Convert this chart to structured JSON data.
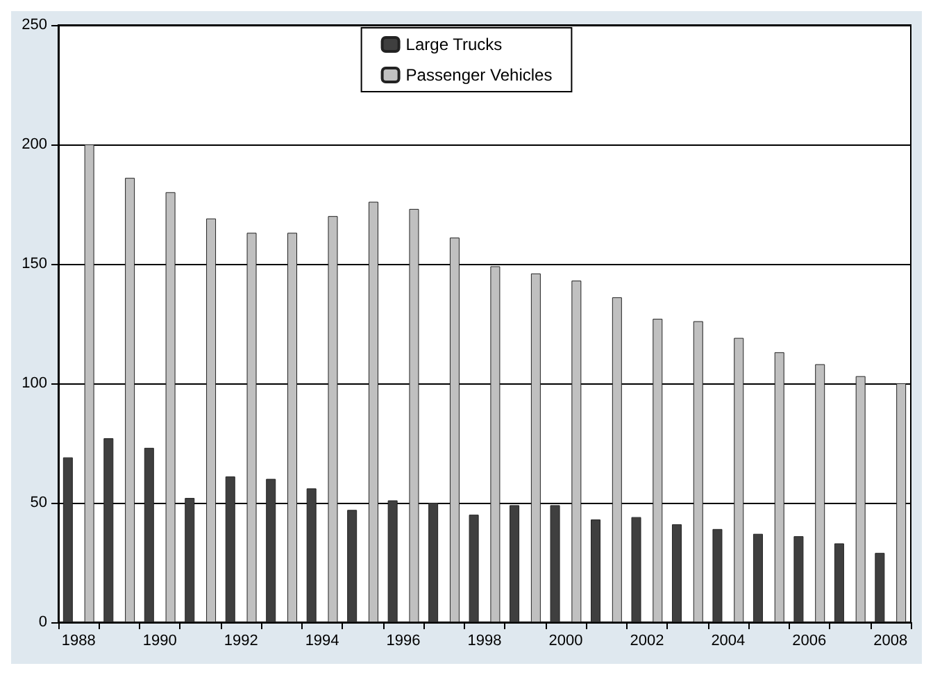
{
  "chart_data": {
    "type": "bar",
    "categories": [
      "1988",
      null,
      "1990",
      null,
      "1992",
      null,
      "1994",
      null,
      "1996",
      null,
      "1998",
      null,
      "2000",
      null,
      "2002",
      null,
      "2004",
      null,
      "2006",
      null,
      "2008"
    ],
    "series": [
      {
        "name": "Large Trucks",
        "color": "#3f3f3f",
        "values": [
          69,
          77,
          73,
          52,
          61,
          60,
          56,
          47,
          51,
          50,
          45,
          49,
          49,
          43,
          44,
          41,
          39,
          37,
          36,
          33,
          29
        ]
      },
      {
        "name": "Passenger Vehicles",
        "color": "#c0c0c0",
        "values": [
          200,
          186,
          180,
          169,
          163,
          163,
          170,
          176,
          173,
          161,
          149,
          146,
          143,
          136,
          127,
          126,
          119,
          113,
          108,
          103,
          100
        ]
      }
    ],
    "ylim": [
      0,
      250
    ],
    "yticks": [
      0,
      50,
      100,
      150,
      200,
      250
    ],
    "grid": "y",
    "legend": "top"
  }
}
